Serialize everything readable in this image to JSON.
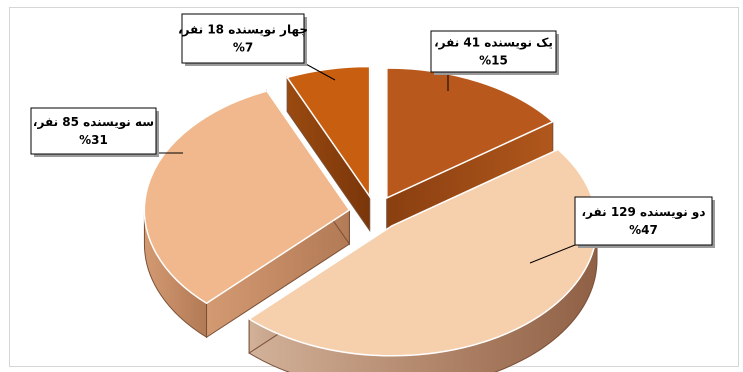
{
  "chart_data": {
    "type": "pie",
    "style": "3d-exploded",
    "slices": [
      {
        "name": "یک نویسنده",
        "count": 41,
        "percent": 15,
        "line1": "یک نویسنده 41 نفر،",
        "line2": "%15",
        "color": "#b8581c"
      },
      {
        "name": "دو نویسنده",
        "count": 129,
        "percent": 47,
        "line1": "دو نویسنده 129 نفر،",
        "line2": "%47",
        "color": "#f6cfad"
      },
      {
        "name": "سه نویسنده",
        "count": 85,
        "percent": 31,
        "line1": "سه نویسنده 85 نفر،",
        "line2": "%31",
        "color": "#f0b88c"
      },
      {
        "name": "چهار نویسنده",
        "count": 18,
        "percent": 7,
        "line1": "چهار نویسنده 18 نفر،",
        "line2": "%7",
        "color": "#c85e10"
      }
    ],
    "legend": "none"
  }
}
